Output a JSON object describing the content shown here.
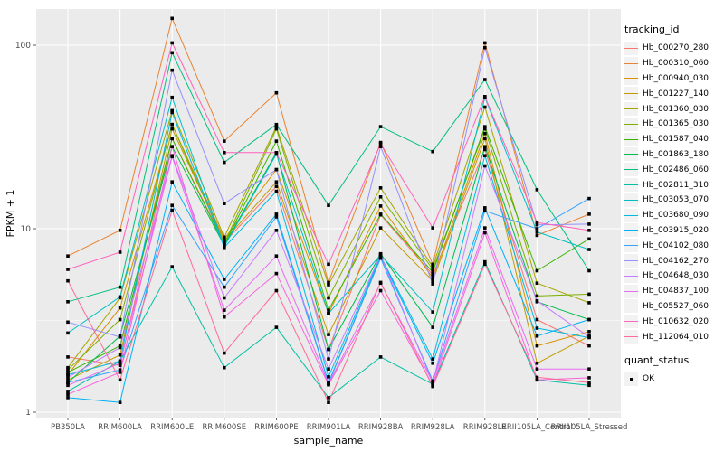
{
  "figure": {
    "bg": "#FFFFFF",
    "panel_bg": "#EBEBEB",
    "grid_color": "#FFFFFF",
    "tick_color": "#333333",
    "tick_label_color": "#4D4D4D",
    "marker_color": "#000000"
  },
  "chart_data": {
    "type": "line",
    "title": "",
    "xlabel": "sample_name",
    "ylabel": "FPKM + 1",
    "y_scale": "log10",
    "ylim": [
      1,
      160
    ],
    "y_ticks": [
      1,
      10,
      100
    ],
    "y_tick_labels": [
      "1",
      "10",
      "100"
    ],
    "y_minor_gridlines": [
      3.162,
      31.62
    ],
    "grid": "on",
    "legend": {
      "title": "tracking_id",
      "position": "right"
    },
    "quant_legend": {
      "title": "quant_status",
      "items": [
        {
          "label": "OK",
          "marker": "black-square"
        }
      ]
    },
    "categories": [
      "PB350LA",
      "RRIM600LA",
      "RRIM600LE",
      "RRIM600SE",
      "RRIM600PE",
      "RRIM901LA",
      "RRIM928BA",
      "RRIM928LA",
      "RRIM928LE",
      "RRII105LA_Control",
      "RRII105LA_Stressed"
    ],
    "series": [
      {
        "name": "Hb_000270_280",
        "color": "#F8766D",
        "values": [
          2.0,
          1.8,
          31,
          8.4,
          17,
          2.2,
          11.9,
          5.6,
          27,
          3.2,
          2.3
        ]
      },
      {
        "name": "Hb_000310_060",
        "color": "#EA8331",
        "values": [
          7.1,
          9.8,
          140,
          30,
          55,
          5.1,
          29.5,
          6.4,
          103,
          9.2,
          12.0
        ]
      },
      {
        "name": "Hb_000940_030",
        "color": "#D89000",
        "values": [
          1.6,
          3.7,
          37,
          8.8,
          21,
          3.45,
          13.3,
          5.4,
          33,
          2.3,
          2.75
        ]
      },
      {
        "name": "Hb_001227_140",
        "color": "#C09B00",
        "values": [
          1.5,
          2.05,
          35,
          8.6,
          18,
          2.65,
          10.1,
          5.2,
          31,
          1.85,
          2.6
        ]
      },
      {
        "name": "Hb_001360_030",
        "color": "#A3A500",
        "values": [
          1.75,
          4.2,
          44,
          9.0,
          36,
          4.95,
          16.7,
          6.2,
          46,
          5.05,
          3.95
        ]
      },
      {
        "name": "Hb_001365_030",
        "color": "#7CAE00",
        "values": [
          1.7,
          3.2,
          37,
          8.3,
          35,
          4.2,
          14.9,
          6.0,
          35,
          4.3,
          4.4
        ]
      },
      {
        "name": "Hb_001587_040",
        "color": "#39B600",
        "values": [
          1.65,
          2.3,
          31,
          8.2,
          30,
          3.6,
          12.0,
          5.8,
          36,
          5.9,
          8.8
        ]
      },
      {
        "name": "Hb_001863_180",
        "color": "#00BB4E",
        "values": [
          1.45,
          2.6,
          28,
          8.1,
          26,
          2.2,
          7.3,
          2.9,
          28,
          4.0,
          3.2
        ]
      },
      {
        "name": "Hb_002486_060",
        "color": "#00BF7D",
        "values": [
          4.0,
          4.8,
          91,
          23,
          37,
          13.4,
          36,
          26.3,
          65,
          16.3,
          5.9
        ]
      },
      {
        "name": "Hb_002811_310",
        "color": "#00C1A3",
        "values": [
          1.3,
          1.9,
          6.2,
          1.75,
          2.9,
          1.2,
          2.0,
          1.42,
          6.6,
          1.5,
          1.4
        ]
      },
      {
        "name": "Hb_003053_070",
        "color": "#00BFC4",
        "values": [
          2.7,
          4.25,
          52,
          8.0,
          25.5,
          3.45,
          7.2,
          3.52,
          52,
          9.6,
          7.7
        ]
      },
      {
        "name": "Hb_003680_090",
        "color": "#00BAE0",
        "values": [
          1.6,
          1.9,
          43,
          7.9,
          16,
          1.56,
          7.1,
          1.95,
          25,
          2.87,
          2.55
        ]
      },
      {
        "name": "Hb_003915_020",
        "color": "#00B0F6",
        "values": [
          1.2,
          1.13,
          18,
          5.3,
          12,
          1.45,
          7.0,
          1.85,
          13,
          2.6,
          3.2
        ]
      },
      {
        "name": "Hb_004102_080",
        "color": "#35A2FF",
        "values": [
          1.45,
          1.7,
          13.4,
          4.8,
          11.6,
          1.44,
          6.9,
          1.48,
          12.5,
          10.0,
          14.6
        ]
      },
      {
        "name": "Hb_004162_270",
        "color": "#9590FF",
        "values": [
          3.1,
          2.57,
          73,
          13.7,
          21,
          1.95,
          28,
          5.0,
          97,
          10.5,
          10.6
        ]
      },
      {
        "name": "Hb_004648_030",
        "color": "#C77CFF",
        "values": [
          1.55,
          2.25,
          25,
          4.2,
          9.8,
          1.72,
          7.2,
          1.44,
          22,
          4.05,
          2.57
        ]
      },
      {
        "name": "Hb_004837_100",
        "color": "#E76BF3",
        "values": [
          1.4,
          1.85,
          24.7,
          3.6,
          7.1,
          1.43,
          5.05,
          1.46,
          10.1,
          1.72,
          1.72
        ]
      },
      {
        "name": "Hb_005527_060",
        "color": "#FA62DB",
        "values": [
          1.25,
          1.65,
          28,
          3.3,
          5.7,
          1.41,
          4.6,
          1.4,
          9.5,
          1.5,
          1.54
        ]
      },
      {
        "name": "Hb_010632_020",
        "color": "#FF62BC",
        "values": [
          6.0,
          7.45,
          103,
          26,
          26,
          6.4,
          29,
          10.1,
          52.5,
          10.8,
          9.8
        ]
      },
      {
        "name": "Hb_112064_010",
        "color": "#FF6A98",
        "values": [
          5.2,
          1.5,
          12.6,
          2.1,
          4.6,
          1.13,
          5.1,
          1.38,
          6.4,
          1.55,
          1.45
        ]
      }
    ]
  }
}
